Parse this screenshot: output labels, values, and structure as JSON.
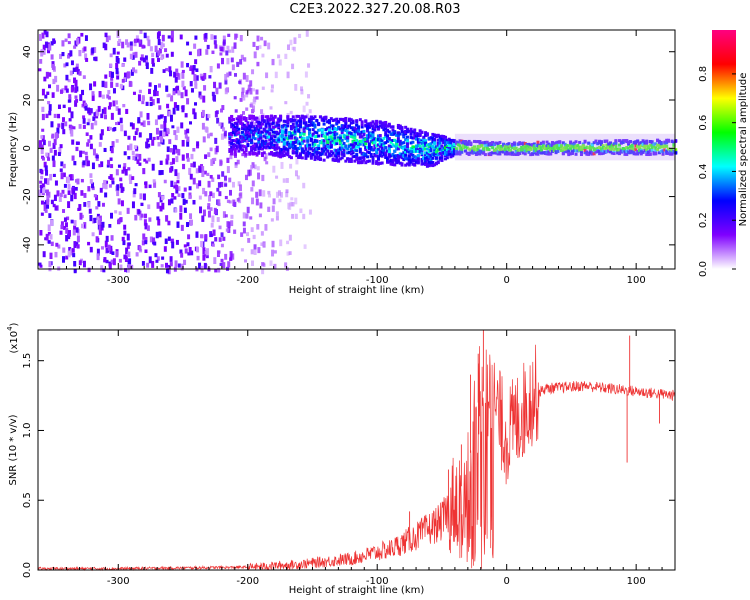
{
  "title": "C2E3.2022.327.20.08.R03",
  "chart_data": [
    {
      "type": "heatmap",
      "xlabel": "Height of straight line (km)",
      "ylabel": "Frequency (Hz)",
      "xlim": [
        -362,
        130
      ],
      "ylim": [
        -50,
        49
      ],
      "xticks": [
        -300,
        -200,
        -100,
        0,
        100
      ],
      "yticks": [
        -40,
        -20,
        0,
        20,
        40
      ],
      "colorbar": {
        "label": "Normalized spectral amplitude",
        "range": [
          0,
          0.98
        ],
        "ticks": [
          "0.0",
          "0.2",
          "0.4",
          "0.6",
          "0.8"
        ],
        "colors": [
          "#ffffff",
          "#7f00ff",
          "#0000ff",
          "#00ffff",
          "#00ff00",
          "#ffff00",
          "#ff0000",
          "#ff0080"
        ]
      },
      "band_profile": [
        {
          "x": -200,
          "center": 6,
          "width": 16,
          "level": 0.38
        },
        {
          "x": -150,
          "center": 5,
          "width": 18,
          "level": 0.55
        },
        {
          "x": -100,
          "center": 3,
          "width": 18,
          "level": 0.5
        },
        {
          "x": -60,
          "center": 0,
          "width": 14,
          "level": 0.55
        },
        {
          "x": -40,
          "center": 1,
          "width": 6,
          "level": 0.55
        },
        {
          "x": 0,
          "center": 0.5,
          "width": 5,
          "level": 0.55
        },
        {
          "x": 100,
          "center": 1,
          "width": 6,
          "level": 0.55
        },
        {
          "x": 130,
          "center": 1,
          "width": 6,
          "level": 0.55
        }
      ]
    },
    {
      "type": "line",
      "xlabel": "Height of straight line (km)",
      "ylabel": "SNR (10 * v/v)",
      "y_multiplier": "(x10",
      "y_multiplier_exp": "4",
      "y_multiplier_close": ")",
      "xlim": [
        -362,
        130
      ],
      "ylim": [
        0,
        1.72
      ],
      "xticks": [
        -300,
        -200,
        -100,
        0,
        100
      ],
      "yticks": [
        "0.0",
        "0.5",
        "1.0",
        "1.5"
      ],
      "color": "#ee3333",
      "points": [
        [
          -362,
          0.01
        ],
        [
          -300,
          0.01
        ],
        [
          -250,
          0.015
        ],
        [
          -200,
          0.02
        ],
        [
          -160,
          0.04
        ],
        [
          -120,
          0.08
        ],
        [
          -90,
          0.15
        ],
        [
          -70,
          0.24
        ],
        [
          -50,
          0.35
        ],
        [
          -40,
          0.5
        ],
        [
          -30,
          0.7
        ],
        [
          -25,
          1.05
        ],
        [
          -20,
          1.3
        ],
        [
          -10,
          1.2
        ],
        [
          0,
          0.95
        ],
        [
          10,
          1.1
        ],
        [
          20,
          1.25
        ],
        [
          30,
          1.3
        ],
        [
          60,
          1.32
        ],
        [
          80,
          1.3
        ],
        [
          100,
          1.28
        ],
        [
          130,
          1.25
        ]
      ],
      "spikes": [
        [
          -18,
          1.72
        ],
        [
          -28,
          1.4
        ],
        [
          -22,
          1.55
        ],
        [
          -35,
          0.9
        ],
        [
          -45,
          0.72
        ],
        [
          -75,
          0.42
        ],
        [
          95,
          1.68
        ],
        [
          93,
          0.77
        ],
        [
          118,
          1.05
        ]
      ]
    }
  ]
}
